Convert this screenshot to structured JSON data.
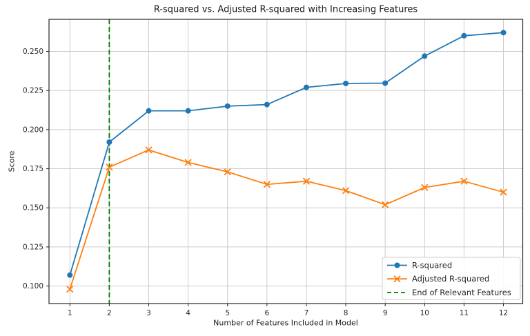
{
  "chart_data": {
    "type": "line",
    "title": "R-squared vs. Adjusted R-squared with Increasing Features",
    "xlabel": "Number of Features Included in Model",
    "ylabel": "Score",
    "x": [
      1,
      2,
      3,
      4,
      5,
      6,
      7,
      8,
      9,
      10,
      11,
      12
    ],
    "xticks": [
      1,
      2,
      3,
      4,
      5,
      6,
      7,
      8,
      9,
      10,
      11,
      12
    ],
    "yticks": [
      0.1,
      0.125,
      0.15,
      0.175,
      0.2,
      0.225,
      0.25
    ],
    "ytick_labels": [
      "0.100",
      "0.125",
      "0.150",
      "0.175",
      "0.200",
      "0.225",
      "0.250"
    ],
    "xlim": [
      0.47,
      12.49
    ],
    "ylim": [
      0.0888,
      0.2705
    ],
    "grid": true,
    "legend_position": "lower right",
    "series": [
      {
        "name": "R-squared",
        "color": "#1f77b4",
        "marker": "circle",
        "linestyle": "solid",
        "values": [
          0.107,
          0.192,
          0.212,
          0.212,
          0.215,
          0.216,
          0.227,
          0.2295,
          0.2297,
          0.247,
          0.26,
          0.262
        ]
      },
      {
        "name": "Adjusted R-squared",
        "color": "#ff7f0e",
        "marker": "x",
        "linestyle": "solid",
        "values": [
          0.098,
          0.176,
          0.187,
          0.179,
          0.173,
          0.165,
          0.167,
          0.161,
          0.152,
          0.163,
          0.167,
          0.16
        ]
      }
    ],
    "annotations": [
      {
        "type": "vline",
        "x": 2,
        "label": "End of Relevant Features",
        "color": "#008000",
        "linestyle": "dashed"
      }
    ],
    "colors": {
      "background": "#ffffff",
      "grid": "#cccccc",
      "spine": "#262626",
      "text": "#262626",
      "legend_border": "#cccccc",
      "legend_background": "#ffffff"
    }
  }
}
